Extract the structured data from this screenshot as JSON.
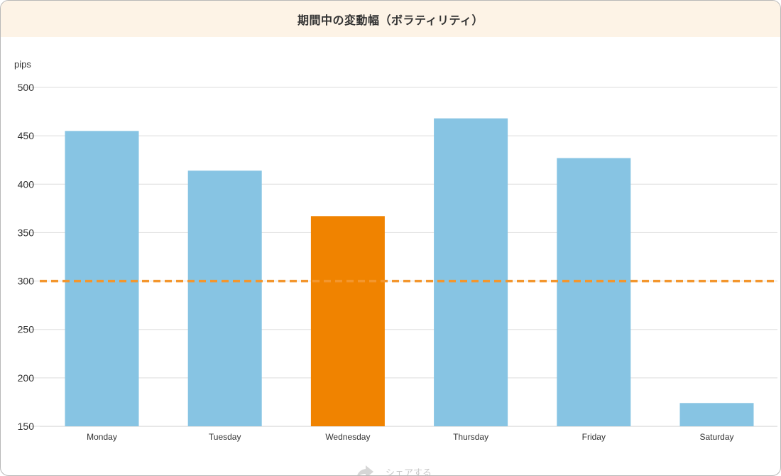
{
  "header": {
    "title": "期間中の変動幅（ボラティリティ）"
  },
  "share": {
    "label": "シェアする",
    "icon": "share-icon"
  },
  "colors": {
    "bar_default": "#87c4e3",
    "bar_highlight": "#f08300",
    "reference_line": "#f3962d",
    "grid": "#dddddd",
    "header_bg": "#fdf3e6"
  },
  "chart_data": {
    "type": "bar",
    "ylabel": "pips",
    "ylim": [
      150,
      500
    ],
    "yticks": [
      500,
      450,
      400,
      350,
      300,
      250,
      200,
      150
    ],
    "categories": [
      "Monday",
      "Tuesday",
      "Wednesday",
      "Thursday",
      "Friday",
      "Saturday"
    ],
    "values": [
      455,
      414,
      367,
      468,
      427,
      174
    ],
    "highlight_category": "Wednesday",
    "reference_line": {
      "value": 300,
      "style": "dashed"
    },
    "grid": true,
    "legend": "none"
  }
}
